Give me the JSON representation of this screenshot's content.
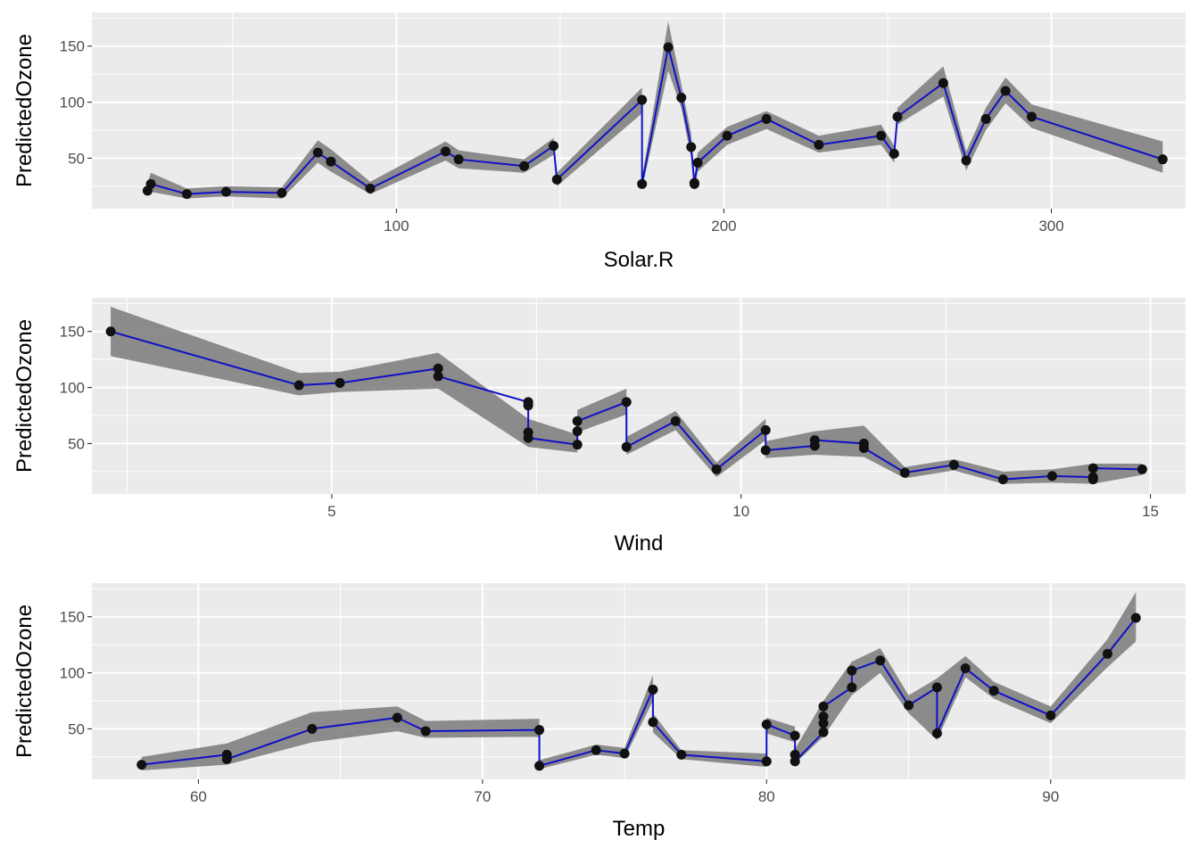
{
  "chart_data": [
    {
      "type": "line",
      "xlabel": "Solar.R",
      "ylabel": "PredictedOzone",
      "xlim": [
        7,
        341
      ],
      "ylim": [
        5,
        180
      ],
      "x_ticks": [
        100,
        200,
        300
      ],
      "y_ticks": [
        50,
        100,
        150
      ],
      "grid": true,
      "colors": {
        "line": "#1010c8",
        "band": "#7a7a7a",
        "point": "#111111",
        "panel": "#ebebeb",
        "grid": "#ffffff"
      },
      "series": [
        {
          "name": "PredictedOzone",
          "points": [
            [
              24,
              21
            ],
            [
              25,
              27
            ],
            [
              36,
              18
            ],
            [
              48,
              20
            ],
            [
              65,
              19
            ],
            [
              76,
              55
            ],
            [
              80,
              47
            ],
            [
              92,
              23
            ],
            [
              115,
              56
            ],
            [
              119,
              49
            ],
            [
              139,
              43
            ],
            [
              148,
              61
            ],
            [
              149,
              31
            ],
            [
              175,
              102
            ],
            [
              175,
              27
            ],
            [
              183,
              149
            ],
            [
              187,
              104
            ],
            [
              190,
              60
            ],
            [
              191,
              27
            ],
            [
              191,
              28
            ],
            [
              192,
              46
            ],
            [
              201,
              70
            ],
            [
              213,
              85
            ],
            [
              229,
              62
            ],
            [
              248,
              70
            ],
            [
              252,
              54
            ],
            [
              253,
              87
            ],
            [
              267,
              117
            ],
            [
              274,
              48
            ],
            [
              280,
              85
            ],
            [
              286,
              110
            ],
            [
              294,
              87
            ],
            [
              334,
              49
            ]
          ]
        }
      ],
      "band": [
        [
          24,
          17,
          28
        ],
        [
          25,
          20,
          37
        ],
        [
          36,
          14,
          23
        ],
        [
          48,
          16,
          25
        ],
        [
          65,
          14,
          24
        ],
        [
          76,
          46,
          66
        ],
        [
          80,
          38,
          58
        ],
        [
          92,
          18,
          29
        ],
        [
          115,
          48,
          65
        ],
        [
          119,
          41,
          57
        ],
        [
          139,
          37,
          49
        ],
        [
          148,
          53,
          68
        ],
        [
          149,
          25,
          37
        ],
        [
          175,
          90,
          113
        ],
        [
          175,
          23,
          33
        ],
        [
          183,
          128,
          172
        ],
        [
          187,
          95,
          116
        ],
        [
          190,
          50,
          72
        ],
        [
          191,
          21,
          34
        ],
        [
          192,
          38,
          55
        ],
        [
          201,
          62,
          78
        ],
        [
          213,
          76,
          92
        ],
        [
          229,
          55,
          70
        ],
        [
          248,
          62,
          80
        ],
        [
          252,
          46,
          61
        ],
        [
          253,
          80,
          95
        ],
        [
          267,
          105,
          132
        ],
        [
          274,
          39,
          56
        ],
        [
          280,
          75,
          95
        ],
        [
          286,
          99,
          122
        ],
        [
          294,
          77,
          98
        ],
        [
          334,
          37,
          65
        ]
      ]
    },
    {
      "type": "line",
      "xlabel": "Wind",
      "ylabel": "PredictedOzone",
      "xlim": [
        2.07,
        15.43
      ],
      "ylim": [
        5,
        180
      ],
      "x_ticks": [
        5,
        10,
        15
      ],
      "y_ticks": [
        50,
        100,
        150
      ],
      "grid": true,
      "colors": {
        "line": "#1010c8",
        "band": "#7a7a7a",
        "point": "#111111",
        "panel": "#ebebeb",
        "grid": "#ffffff"
      },
      "series": [
        {
          "name": "PredictedOzone",
          "points": [
            [
              2.3,
              150
            ],
            [
              4.6,
              102
            ],
            [
              5.1,
              104
            ],
            [
              6.3,
              117
            ],
            [
              6.3,
              110
            ],
            [
              7.4,
              87
            ],
            [
              7.4,
              84
            ],
            [
              7.4,
              60
            ],
            [
              7.4,
              55
            ],
            [
              8.0,
              49
            ],
            [
              8.0,
              61
            ],
            [
              8.0,
              70
            ],
            [
              8.6,
              87
            ],
            [
              8.6,
              47
            ],
            [
              9.2,
              70
            ],
            [
              9.7,
              27
            ],
            [
              10.3,
              62
            ],
            [
              10.3,
              44
            ],
            [
              10.9,
              48
            ],
            [
              10.9,
              53
            ],
            [
              11.5,
              50
            ],
            [
              11.5,
              46
            ],
            [
              12.0,
              24
            ],
            [
              12.6,
              31
            ],
            [
              13.2,
              18
            ],
            [
              13.8,
              21
            ],
            [
              14.3,
              20
            ],
            [
              14.3,
              18
            ],
            [
              14.3,
              28
            ],
            [
              14.9,
              27
            ]
          ]
        }
      ],
      "band": [
        [
          2.3,
          128,
          172
        ],
        [
          4.6,
          93,
          113
        ],
        [
          5.1,
          96,
          114
        ],
        [
          6.3,
          99,
          131
        ],
        [
          7.4,
          47,
          72
        ],
        [
          8.0,
          42,
          58
        ],
        [
          8.0,
          60,
          80
        ],
        [
          8.6,
          76,
          99
        ],
        [
          8.6,
          40,
          56
        ],
        [
          9.2,
          62,
          79
        ],
        [
          9.7,
          20,
          33
        ],
        [
          10.3,
          53,
          72
        ],
        [
          10.3,
          37,
          52
        ],
        [
          10.9,
          40,
          61
        ],
        [
          11.5,
          38,
          66
        ],
        [
          12.0,
          19,
          29
        ],
        [
          12.6,
          26,
          36
        ],
        [
          13.2,
          14,
          25
        ],
        [
          13.8,
          15,
          27
        ],
        [
          14.3,
          14,
          32
        ],
        [
          14.9,
          22,
          32
        ]
      ]
    },
    {
      "type": "line",
      "xlabel": "Temp",
      "ylabel": "PredictedOzone",
      "xlim": [
        56.25,
        94.75
      ],
      "ylim": [
        5,
        180
      ],
      "x_ticks": [
        60,
        70,
        80,
        90
      ],
      "y_ticks": [
        50,
        100,
        150
      ],
      "grid": true,
      "colors": {
        "line": "#1010c8",
        "band": "#7a7a7a",
        "point": "#111111",
        "panel": "#ebebeb",
        "grid": "#ffffff"
      },
      "series": [
        {
          "name": "PredictedOzone",
          "points": [
            [
              58,
              18
            ],
            [
              61,
              27
            ],
            [
              61,
              23
            ],
            [
              64,
              50
            ],
            [
              67,
              60
            ],
            [
              68,
              48
            ],
            [
              72,
              49
            ],
            [
              72,
              17
            ],
            [
              74,
              31
            ],
            [
              75,
              28
            ],
            [
              76,
              85
            ],
            [
              76,
              56
            ],
            [
              77,
              27
            ],
            [
              80,
              21
            ],
            [
              80,
              54
            ],
            [
              81,
              44
            ],
            [
              81,
              27
            ],
            [
              81,
              21
            ],
            [
              82,
              47
            ],
            [
              82,
              55
            ],
            [
              82,
              61
            ],
            [
              82,
              70
            ],
            [
              83,
              87
            ],
            [
              83,
              102
            ],
            [
              84,
              111
            ],
            [
              85,
              71
            ],
            [
              86,
              87
            ],
            [
              86,
              46
            ],
            [
              87,
              104
            ],
            [
              88,
              84
            ],
            [
              90,
              62
            ],
            [
              92,
              117
            ],
            [
              93,
              149
            ]
          ]
        }
      ],
      "band": [
        [
          58,
          13,
          25
        ],
        [
          61,
          18,
          37
        ],
        [
          64,
          38,
          65
        ],
        [
          67,
          48,
          70
        ],
        [
          68,
          42,
          57
        ],
        [
          72,
          43,
          59
        ],
        [
          72,
          14,
          22
        ],
        [
          74,
          27,
          36
        ],
        [
          75,
          24,
          33
        ],
        [
          76,
          75,
          98
        ],
        [
          76,
          47,
          64
        ],
        [
          77,
          23,
          31
        ],
        [
          80,
          16,
          28
        ],
        [
          80,
          46,
          60
        ],
        [
          81,
          38,
          52
        ],
        [
          81,
          19,
          32
        ],
        [
          82,
          43,
          75
        ],
        [
          83,
          80,
          110
        ],
        [
          84,
          100,
          122
        ],
        [
          85,
          64,
          80
        ],
        [
          86,
          40,
          95
        ],
        [
          87,
          96,
          115
        ],
        [
          88,
          77,
          92
        ],
        [
          90,
          55,
          70
        ],
        [
          92,
          105,
          130
        ],
        [
          93,
          128,
          172
        ]
      ]
    }
  ]
}
